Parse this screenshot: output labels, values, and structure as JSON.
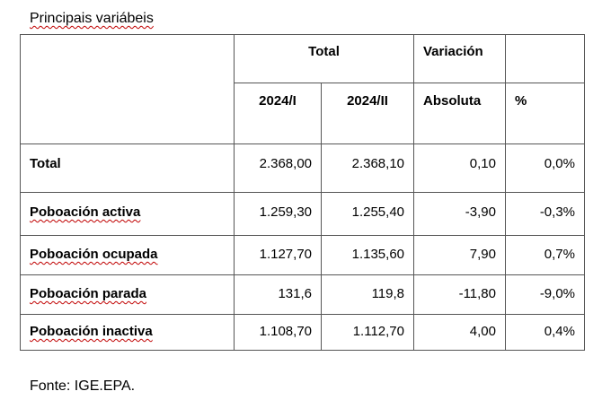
{
  "title": "Principais variábeis",
  "table": {
    "header": [
      [
        "Total",
        "Variación"
      ],
      [
        "2024/I",
        "2024/II",
        "Absoluta",
        "%"
      ]
    ],
    "rows": [
      [
        "Total",
        "2.368,00",
        "2.368,10",
        "0,10",
        "0,0%"
      ],
      [
        "Poboación activa",
        "1.259,30",
        "1.255,40",
        "-3,90",
        "-0,3%"
      ],
      [
        "Poboación ocupada",
        "1.127,70",
        "1.135,60",
        "7,90",
        "0,7%"
      ],
      [
        "Poboación parada",
        "131,6",
        "119,8",
        "-11,80",
        "-9,0%"
      ],
      [
        "Poboación inactiva",
        "1.108,70",
        "1.112,70",
        "4,00",
        "0,4%"
      ]
    ]
  },
  "source": "Fonte: IGE.EPA."
}
